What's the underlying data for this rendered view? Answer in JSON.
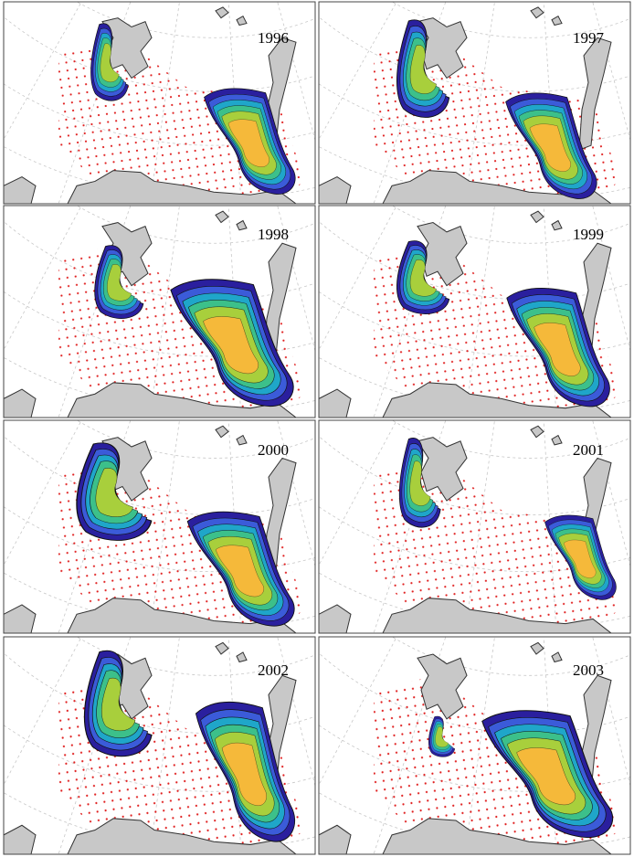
{
  "panels": [
    {
      "year": "1996"
    },
    {
      "year": "1997"
    },
    {
      "year": "1998"
    },
    {
      "year": "1999"
    },
    {
      "year": "2000"
    },
    {
      "year": "2001"
    },
    {
      "year": "2002"
    },
    {
      "year": "2003"
    }
  ]
}
